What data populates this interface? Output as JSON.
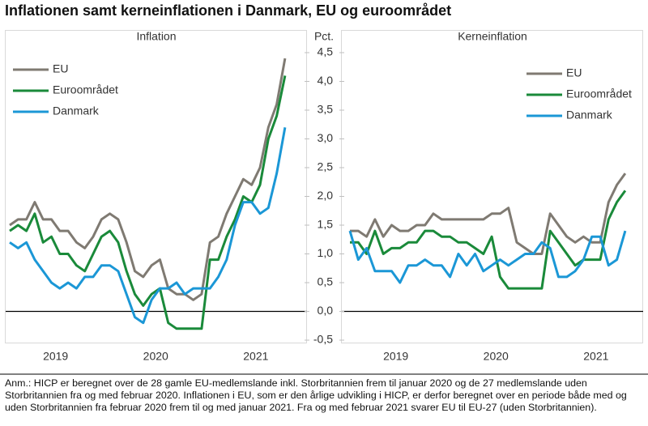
{
  "title": "Inflationen samt kerneinflationen i Danmark, EU og euroområdet",
  "note": "Anm.: HICP er beregnet over de 28 gamle EU-medlemslande inkl. Storbritannien frem til januar 2020 og de 27 medlemslande uden Storbritannien fra og med februar 2020. Inflationen i EU, som er den årlige udvikling i HICP, er derfor beregnet over en periode både med og uden Storbritannien fra februar 2020 frem til og med januar 2021. Fra og med februar 2021 svarer EU til EU-27 (uden Storbritannien).",
  "chart_data": [
    {
      "type": "line",
      "title": "Inflation",
      "y_label": "Pct.",
      "categories": [
        null,
        null,
        null,
        null,
        null,
        "2019",
        null,
        null,
        null,
        null,
        null,
        null,
        null,
        null,
        null,
        null,
        null,
        "2020",
        null,
        null,
        null,
        null,
        null,
        null,
        null,
        null,
        null,
        null,
        null,
        "2021",
        null,
        null,
        null,
        null
      ],
      "ylim": [
        -0.5,
        4.5
      ],
      "yticks": [
        {
          "value": -0.5,
          "label": "-0,5"
        },
        {
          "value": 0,
          "label": "0,0"
        },
        {
          "value": 0.5,
          "label": "0,5"
        },
        {
          "value": 1,
          "label": "1,0"
        },
        {
          "value": 1.5,
          "label": "1,5"
        },
        {
          "value": 2,
          "label": "2,0"
        },
        {
          "value": 2.5,
          "label": "2,5"
        },
        {
          "value": 3,
          "label": "3,0"
        },
        {
          "value": 3.5,
          "label": "3,5"
        },
        {
          "value": 4,
          "label": "4,0"
        },
        {
          "value": 4.5,
          "label": "4,5"
        }
      ],
      "legend": "upper left",
      "series": [
        {
          "name": "EU",
          "color": "#7f7a72",
          "values": [
            1.5,
            1.6,
            1.6,
            1.9,
            1.6,
            1.6,
            1.4,
            1.4,
            1.2,
            1.1,
            1.3,
            1.6,
            1.7,
            1.6,
            1.2,
            0.7,
            0.6,
            0.8,
            0.9,
            0.4,
            0.3,
            0.3,
            0.2,
            0.3,
            1.2,
            1.3,
            1.7,
            2.0,
            2.3,
            2.2,
            2.5,
            3.2,
            3.6,
            4.4
          ]
        },
        {
          "name": "Euroområdet",
          "color": "#1a8a3a",
          "values": [
            1.4,
            1.5,
            1.4,
            1.7,
            1.2,
            1.3,
            1.0,
            1.0,
            0.8,
            0.7,
            1.0,
            1.3,
            1.4,
            1.2,
            0.7,
            0.3,
            0.1,
            0.3,
            0.4,
            -0.2,
            -0.3,
            -0.3,
            -0.3,
            -0.3,
            0.9,
            0.9,
            1.3,
            1.6,
            2.0,
            1.9,
            2.2,
            3.0,
            3.4,
            4.1
          ]
        },
        {
          "name": "Danmark",
          "color": "#1b97d6",
          "values": [
            1.2,
            1.1,
            1.2,
            0.9,
            0.7,
            0.5,
            0.4,
            0.5,
            0.4,
            0.6,
            0.6,
            0.8,
            0.8,
            0.7,
            0.3,
            -0.1,
            -0.2,
            0.2,
            0.4,
            0.4,
            0.5,
            0.3,
            0.4,
            0.4,
            0.4,
            0.6,
            0.9,
            1.5,
            1.9,
            1.9,
            1.7,
            1.8,
            2.4,
            3.2
          ]
        }
      ]
    },
    {
      "type": "line",
      "title": "Kerneinflation",
      "categories": [
        null,
        null,
        null,
        null,
        null,
        "2019",
        null,
        null,
        null,
        null,
        null,
        null,
        null,
        null,
        null,
        null,
        null,
        "2020",
        null,
        null,
        null,
        null,
        null,
        null,
        null,
        null,
        null,
        null,
        null,
        "2021",
        null,
        null,
        null,
        null
      ],
      "ylim": [
        -0.5,
        4.5
      ],
      "legend": "upper right",
      "series": [
        {
          "name": "EU",
          "color": "#7f7a72",
          "values": [
            1.4,
            1.4,
            1.3,
            1.6,
            1.3,
            1.5,
            1.4,
            1.4,
            1.5,
            1.5,
            1.7,
            1.6,
            1.6,
            1.6,
            1.6,
            1.6,
            1.6,
            1.7,
            1.7,
            1.8,
            1.2,
            1.1,
            1.0,
            1.0,
            1.7,
            1.5,
            1.3,
            1.2,
            1.3,
            1.2,
            1.2,
            1.9,
            2.2,
            2.4
          ]
        },
        {
          "name": "Euroområdet",
          "color": "#1a8a3a",
          "values": [
            1.2,
            1.2,
            1.0,
            1.4,
            1.0,
            1.1,
            1.1,
            1.2,
            1.2,
            1.4,
            1.4,
            1.3,
            1.3,
            1.2,
            1.2,
            1.1,
            1.0,
            1.3,
            0.6,
            0.4,
            0.4,
            0.4,
            0.4,
            0.4,
            1.4,
            1.2,
            1.0,
            0.8,
            0.9,
            0.9,
            0.9,
            1.6,
            1.9,
            2.1
          ]
        },
        {
          "name": "Danmark",
          "color": "#1b97d6",
          "values": [
            1.4,
            0.9,
            1.1,
            0.7,
            0.7,
            0.7,
            0.5,
            0.8,
            0.8,
            0.9,
            0.8,
            0.8,
            0.6,
            1.0,
            0.8,
            1.0,
            0.7,
            0.8,
            0.9,
            0.8,
            0.9,
            1.0,
            1.0,
            1.2,
            1.1,
            0.6,
            0.6,
            0.7,
            0.9,
            1.3,
            1.3,
            0.8,
            0.9,
            1.4
          ]
        }
      ]
    }
  ]
}
